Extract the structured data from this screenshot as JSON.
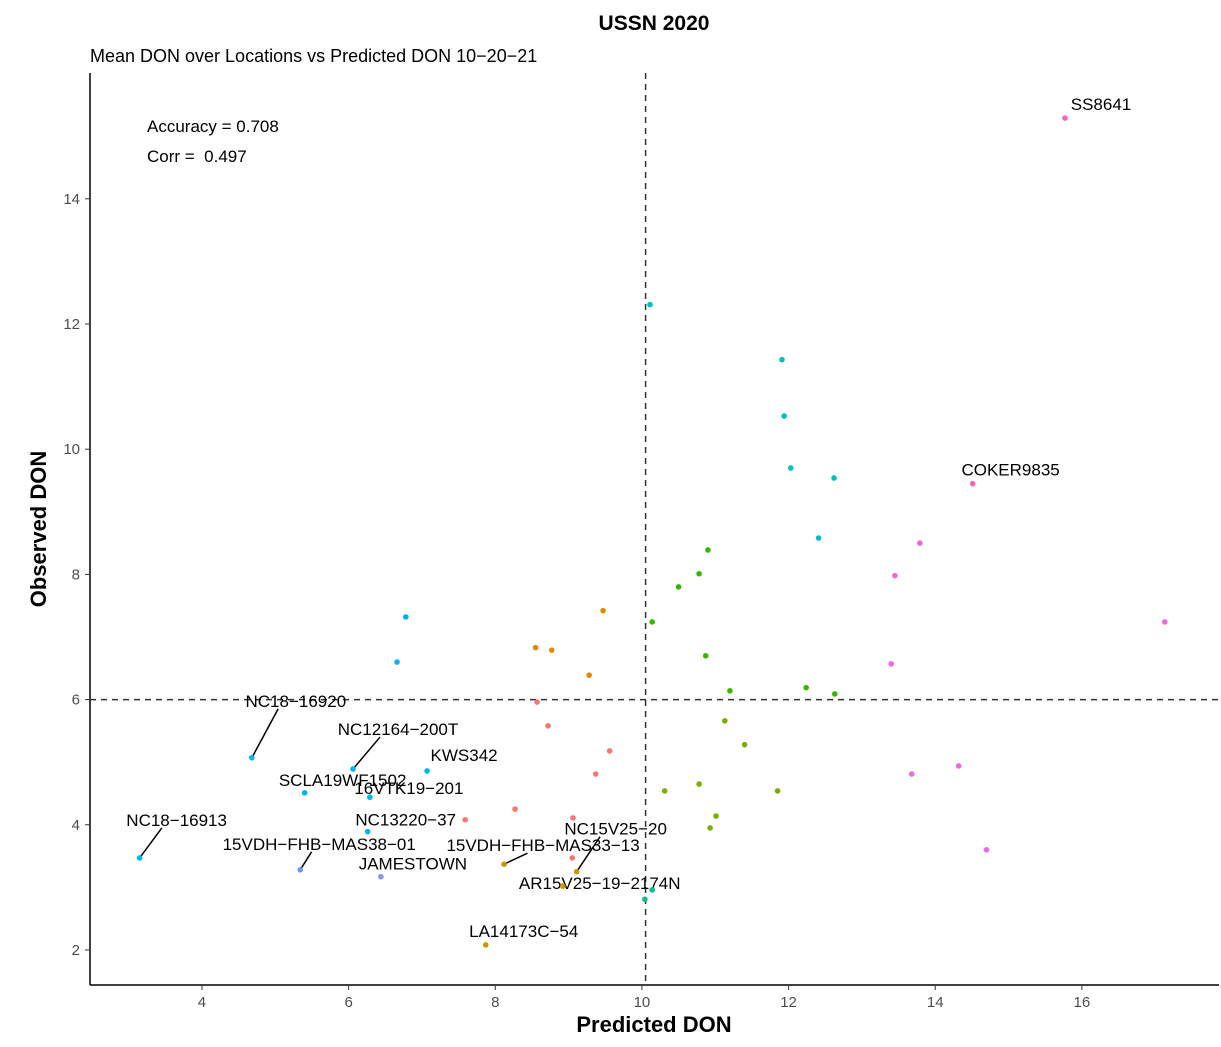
{
  "chart_data": {
    "type": "scatter",
    "title": "USSN 2020",
    "subtitle": "Mean DON over Locations vs Predicted DON 10−20−21",
    "x_label": "Predicted DON",
    "y_label": "Observed DON",
    "annotations": [
      "Accuracy = 0.708",
      "Corr =  0.497"
    ],
    "xlim": [
      2.473,
      17.87
    ],
    "ylim": [
      1.44,
      16.01
    ],
    "xticks": [
      4,
      6,
      8,
      10,
      12,
      14,
      16
    ],
    "yticks": [
      2,
      4,
      6,
      8,
      10,
      12,
      14
    ],
    "vline": 10.05,
    "hline": 6.0,
    "x": [
      15.77,
      10.11,
      11.91,
      11.94,
      12.03,
      12.62,
      12.41,
      14.51,
      13.79,
      13.45,
      17.13,
      13.4,
      13.68,
      14.32,
      14.7,
      10.9,
      10.78,
      10.5,
      10.14,
      10.87,
      11.2,
      12.24,
      12.63,
      11.13,
      11.4,
      10.78,
      10.31,
      11.85,
      11.01,
      10.93,
      9.47,
      8.55,
      8.77,
      9.28,
      8.57,
      8.72,
      9.56,
      9.37,
      8.27,
      9.06,
      9.05,
      7.59,
      6.78,
      6.66,
      4.68,
      6.06,
      7.07,
      5.4,
      6.29,
      3.15,
      6.26,
      5.34,
      6.44,
      8.12,
      9.11,
      8.92,
      7.87,
      10.14,
      10.04
    ],
    "y": [
      15.29,
      12.31,
      11.43,
      10.53,
      9.7,
      9.54,
      8.58,
      9.45,
      8.5,
      7.98,
      7.24,
      6.57,
      4.81,
      4.94,
      3.6,
      8.39,
      8.01,
      7.8,
      7.24,
      6.7,
      6.14,
      6.19,
      6.09,
      5.66,
      5.28,
      4.65,
      4.54,
      4.54,
      4.14,
      3.95,
      7.42,
      6.83,
      6.79,
      6.39,
      5.96,
      5.58,
      5.18,
      4.81,
      4.25,
      4.11,
      3.47,
      4.08,
      7.32,
      6.6,
      5.07,
      4.89,
      4.86,
      4.51,
      4.44,
      3.47,
      3.89,
      3.28,
      3.17,
      3.37,
      3.25,
      3.02,
      2.08,
      2.96,
      2.81
    ],
    "colors": [
      "#FF61C3",
      "#00BFC4",
      "#00BFC4",
      "#00BFC4",
      "#00BFC4",
      "#00BFC4",
      "#00BFC4",
      "#FF61C3",
      "#F564E3",
      "#F564E3",
      "#F564E3",
      "#F564E3",
      "#F564E3",
      "#F564E3",
      "#F564E3",
      "#39B600",
      "#39B600",
      "#39B600",
      "#39B600",
      "#39B600",
      "#39B600",
      "#39B600",
      "#39B600",
      "#7CAE00",
      "#7CAE00",
      "#7CAE00",
      "#7CAE00",
      "#7CAE00",
      "#7CAE00",
      "#7CAE00",
      "#E58700",
      "#E58700",
      "#E58700",
      "#E58700",
      "#F8766D",
      "#F8766D",
      "#F8766D",
      "#F8766D",
      "#F8766D",
      "#F8766D",
      "#F8766D",
      "#F8766D",
      "#00B0F6",
      "#00B0F6",
      "#00B8E7",
      "#00B8E7",
      "#00B8E7",
      "#00B8E7",
      "#00B8E7",
      "#00B8E7",
      "#00B8E7",
      "#619CFF",
      "#8F91FF",
      "#C99800",
      "#C99800",
      "#C99800",
      "#C99800",
      "#00C08B",
      "#00C08B"
    ],
    "labels": [
      "SS8641",
      null,
      null,
      null,
      null,
      null,
      null,
      "COKER9835",
      null,
      null,
      null,
      null,
      null,
      null,
      null,
      null,
      null,
      null,
      null,
      null,
      null,
      null,
      null,
      null,
      null,
      null,
      null,
      null,
      null,
      null,
      null,
      null,
      null,
      null,
      null,
      null,
      null,
      null,
      null,
      null,
      null,
      null,
      null,
      null,
      "NC18−16920",
      "NC12164−200T",
      "KWS342",
      "SCLA19WF1502",
      "16VTK19−201",
      "NC18−16913",
      "NC13220−37",
      "15VDH−FHB−MAS38−01",
      "JAMESTOWN",
      "15VDH−FHB−MAS33−13",
      "NC15V25−20",
      "AR15V25−19−2174N",
      "LA14173C−54",
      null,
      null
    ]
  }
}
